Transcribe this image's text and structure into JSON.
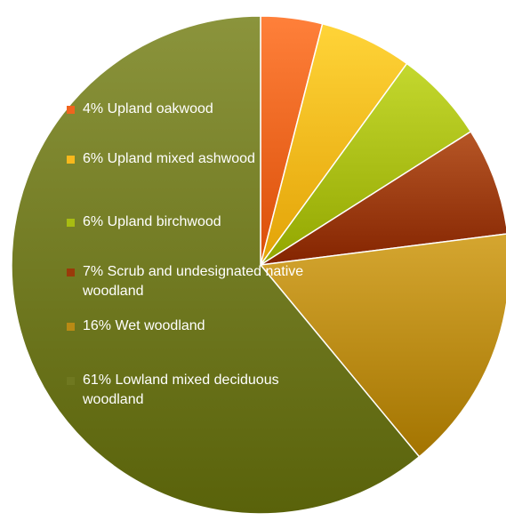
{
  "chart_data": {
    "type": "pie",
    "title": "",
    "slices": [
      {
        "label": "Upland oakwood",
        "value": 4,
        "color": "#f0641e"
      },
      {
        "label": "Upland mixed ashwood",
        "value": 6,
        "color": "#f8b81c"
      },
      {
        "label": "Upland birchwood",
        "value": 6,
        "color": "#a8bc12"
      },
      {
        "label": "Scrub and undesignated native woodland",
        "value": 7,
        "color": "#9a3a0a"
      },
      {
        "label": "Wet woodland",
        "value": 16,
        "color": "#b98a14"
      },
      {
        "label": "Lowland mixed deciduous woodland",
        "value": 61,
        "color": "#6f7820"
      }
    ],
    "legend": {
      "placement": "overlay-left",
      "items": [
        "4% Upland oakwood",
        "6% Upland mixed ashwood",
        "6% Upland birchwood",
        "7% Scrub and undesignated native woodland",
        "16% Wet woodland",
        "61% Lowland mixed deciduous woodland"
      ]
    }
  }
}
